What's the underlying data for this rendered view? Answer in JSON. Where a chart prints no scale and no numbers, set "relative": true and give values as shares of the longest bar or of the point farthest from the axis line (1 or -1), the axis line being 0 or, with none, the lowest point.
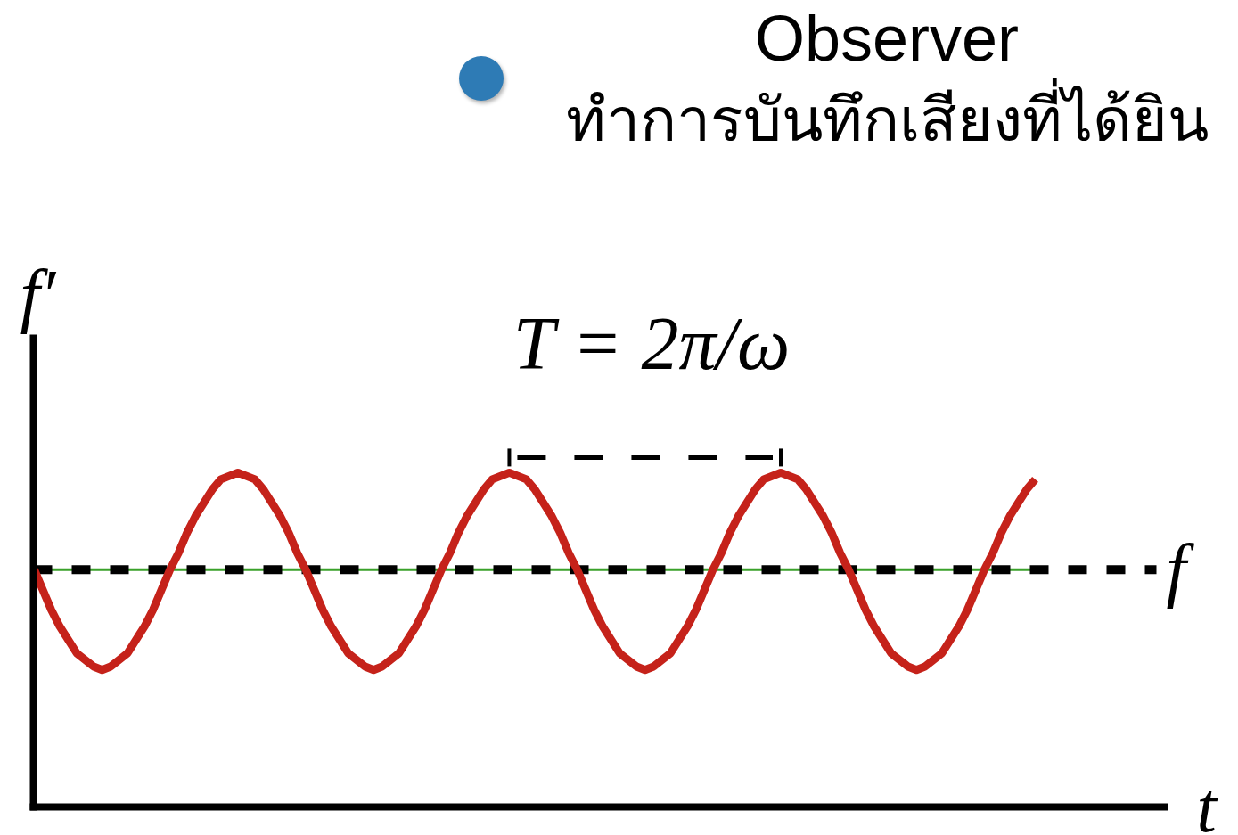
{
  "chart_data": {
    "type": "line",
    "relative": true,
    "xlabel": "t",
    "ylabel": "f′",
    "line_style": "solid",
    "categories": [
      null,
      null,
      null,
      null,
      null,
      null,
      null,
      null,
      null,
      null,
      null,
      null,
      null,
      null,
      null,
      null,
      null,
      null,
      null,
      null,
      null,
      null,
      null,
      null,
      null,
      null,
      null,
      null,
      null,
      null,
      null,
      null,
      null,
      null,
      null,
      null,
      null,
      null,
      null,
      null,
      null,
      null,
      null,
      null,
      null,
      null,
      null,
      null,
      null,
      null,
      null,
      null,
      null,
      null,
      null,
      null,
      null,
      null,
      null,
      null,
      null,
      null,
      null,
      null,
      null,
      null,
      null,
      null,
      null,
      null,
      null,
      null,
      null,
      null,
      null,
      null,
      null,
      null,
      null,
      null,
      null,
      null,
      null,
      null,
      null,
      null,
      null,
      null,
      null,
      null,
      null,
      null,
      null,
      null,
      null,
      null,
      null,
      null,
      null,
      null,
      null,
      null,
      null,
      null,
      null,
      null,
      null,
      null,
      null,
      null,
      null,
      null,
      null,
      null,
      null,
      null,
      null,
      null,
      null
    ],
    "series": [
      {
        "color": "#3aa12a",
        "values": [
          0.71,
          0.71,
          0.71,
          0.71,
          0.71,
          0.71,
          0.71,
          0.71,
          0.71,
          0.71,
          0.71,
          0.71,
          0.71,
          0.71,
          0.71,
          0.71,
          0.71,
          0.71,
          0.71,
          0.71,
          0.71,
          0.71,
          0.71,
          0.71,
          0.71,
          0.71,
          0.71,
          0.71,
          0.71,
          0.71,
          0.71,
          0.71,
          0.71,
          0.71,
          0.71,
          0.71,
          0.71,
          0.71,
          0.71,
          0.71,
          0.71,
          0.71,
          0.71,
          0.71,
          0.71,
          0.71,
          0.71,
          0.71,
          0.71,
          0.71,
          0.71,
          0.71,
          0.71,
          0.71,
          0.71,
          0.71,
          0.71,
          0.71,
          0.71,
          0.71,
          0.71,
          0.71,
          0.71,
          0.71,
          0.71,
          0.71,
          0.71,
          0.71,
          0.71,
          0.71,
          0.71,
          0.71,
          0.71,
          0.71,
          0.71,
          0.71,
          0.71,
          0.71,
          0.71,
          0.71,
          0.71,
          0.71,
          0.71,
          0.71,
          0.71,
          0.71,
          0.71,
          0.71,
          0.71,
          0.71,
          0.71,
          0.71,
          0.71,
          0.71,
          0.71,
          0.71,
          0.71,
          0.71,
          0.71,
          0.71,
          0.71,
          0.71,
          0.71,
          0.71,
          0.71,
          0.71,
          0.71,
          0.71,
          0.71,
          0.71,
          0.71,
          0.71,
          0.71,
          0.71,
          0.71,
          0.71,
          0.71,
          0.71,
          0.71
        ]
      },
      {
        "color": "#c5221a",
        "values": [
          0.71,
          0.65,
          0.59,
          0.54,
          0.5,
          0.46,
          0.44,
          0.42,
          0.41,
          0.42,
          0.44,
          0.46,
          0.5,
          0.54,
          0.59,
          0.65,
          0.71,
          0.76,
          0.82,
          0.87,
          0.91,
          0.95,
          0.98,
          0.99,
          1.0,
          0.99,
          0.98,
          0.95,
          0.91,
          0.87,
          0.82,
          0.76,
          0.71,
          0.65,
          0.59,
          0.54,
          0.5,
          0.46,
          0.44,
          0.42,
          0.41,
          0.42,
          0.44,
          0.46,
          0.5,
          0.54,
          0.59,
          0.65,
          0.71,
          0.76,
          0.82,
          0.87,
          0.91,
          0.95,
          0.98,
          0.99,
          1.0,
          0.99,
          0.98,
          0.95,
          0.91,
          0.87,
          0.82,
          0.76,
          0.71,
          0.65,
          0.59,
          0.54,
          0.5,
          0.46,
          0.44,
          0.42,
          0.41,
          0.42,
          0.44,
          0.46,
          0.5,
          0.54,
          0.59,
          0.65,
          0.71,
          0.76,
          0.82,
          0.87,
          0.91,
          0.95,
          0.98,
          0.99,
          1.0,
          0.99,
          0.98,
          0.95,
          0.91,
          0.87,
          0.82,
          0.76,
          0.71,
          0.65,
          0.59,
          0.54,
          0.5,
          0.46,
          0.44,
          0.42,
          0.41,
          0.42,
          0.44,
          0.46,
          0.5,
          0.54,
          0.59,
          0.65,
          0.71,
          0.76,
          0.82,
          0.87,
          0.91,
          0.95,
          0.98
        ]
      }
    ],
    "ref_lines": [
      {
        "axis": "y",
        "value": 0.71,
        "label": "f",
        "color": "#000000",
        "line_style": "dashed"
      }
    ],
    "annotations": [
      "Observer",
      "ทำการบันทึกเสียงที่ได้ยิน",
      "T = 2π/ω"
    ]
  }
}
